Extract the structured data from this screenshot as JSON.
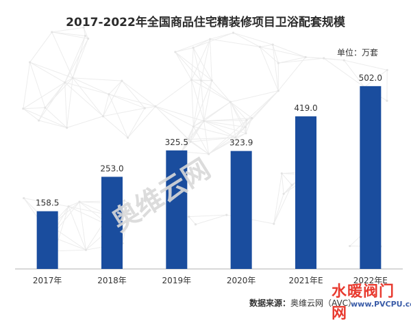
{
  "chart_data": {
    "type": "bar",
    "title": "2017-2022年全国商品住宅精装修项目卫浴配套规模",
    "unit": "单位：万套",
    "categories": [
      "2017年",
      "2018年",
      "2019年",
      "2020年",
      "2021年E",
      "2022年E"
    ],
    "values": [
      158.5,
      253.0,
      325.5,
      323.9,
      419.0,
      502.0
    ],
    "value_labels": [
      "158.5",
      "253.0",
      "325.5",
      "323.9",
      "419.0",
      "502.0"
    ],
    "ylim": [
      0,
      560
    ],
    "grid": false,
    "bar_color": "#1a4d9e"
  },
  "source": {
    "label": "数据来源：",
    "value": "奥维云网（AVC）"
  },
  "logo": {
    "text": "水暖阀门网",
    "url": "www.PVCPU.com"
  },
  "watermark": "奥维云网"
}
